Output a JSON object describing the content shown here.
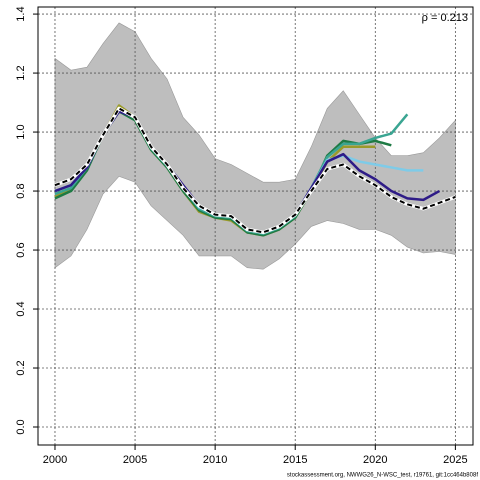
{
  "chart_data": {
    "type": "line",
    "annotation": "ρ = 0.213",
    "footer": "stockassessment.org, NWWG26_N-WSC_test, r19761, git:1cc464b808f",
    "x": [
      2000,
      2001,
      2002,
      2003,
      2004,
      2005,
      2006,
      2007,
      2008,
      2009,
      2010,
      2011,
      2012,
      2013,
      2014,
      2015,
      2016,
      2017,
      2018,
      2019,
      2020,
      2021,
      2022,
      2023,
      2024,
      2025
    ],
    "ci_upper": [
      1.25,
      1.21,
      1.22,
      1.3,
      1.37,
      1.34,
      1.25,
      1.18,
      1.05,
      0.99,
      0.91,
      0.89,
      0.86,
      0.83,
      0.83,
      0.84,
      0.95,
      1.08,
      1.14,
      1.06,
      0.98,
      0.92,
      0.92,
      0.93,
      0.98,
      1.04
    ],
    "ci_lower": [
      0.54,
      0.58,
      0.67,
      0.79,
      0.85,
      0.83,
      0.75,
      0.7,
      0.65,
      0.58,
      0.58,
      0.58,
      0.54,
      0.535,
      0.57,
      0.62,
      0.68,
      0.7,
      0.69,
      0.67,
      0.67,
      0.65,
      0.61,
      0.59,
      0.595,
      0.585
    ],
    "ci_color": "#bebebe",
    "series": [
      {
        "color": "#9a9a2a",
        "values": [
          0.78,
          0.81,
          0.88,
          0.99,
          1.09,
          1.05,
          0.94,
          0.88,
          0.8,
          0.73,
          0.71,
          0.7,
          0.66,
          0.65,
          0.67,
          0.71,
          0.8,
          0.9,
          0.95,
          0.95,
          0.95,
          null,
          null,
          null,
          null,
          null
        ]
      },
      {
        "color": "#1e7a44",
        "values": [
          0.775,
          0.8,
          0.87,
          0.99,
          1.07,
          1.04,
          0.94,
          0.88,
          0.8,
          0.735,
          0.71,
          0.705,
          0.66,
          0.65,
          0.67,
          0.71,
          0.8,
          0.92,
          0.97,
          0.96,
          0.97,
          0.955,
          null,
          null,
          null,
          null
        ]
      },
      {
        "color": "#3aa592",
        "values": [
          0.79,
          0.81,
          0.88,
          0.99,
          1.08,
          1.05,
          0.945,
          0.885,
          0.81,
          0.74,
          0.715,
          0.71,
          0.665,
          0.655,
          0.675,
          0.715,
          0.81,
          0.915,
          0.96,
          0.96,
          0.98,
          0.995,
          1.06,
          null,
          null,
          null
        ]
      },
      {
        "color": "#7ecbe8",
        "values": [
          0.8,
          0.82,
          0.88,
          0.99,
          1.08,
          1.05,
          0.95,
          0.89,
          0.815,
          0.745,
          0.72,
          0.715,
          0.67,
          0.66,
          0.68,
          0.72,
          0.81,
          0.905,
          0.92,
          0.9,
          0.89,
          0.88,
          0.87,
          0.87,
          null,
          null
        ]
      },
      {
        "color": "#2e1b87",
        "values": [
          0.8,
          0.82,
          0.88,
          0.99,
          1.07,
          1.05,
          0.95,
          0.89,
          0.82,
          0.75,
          0.72,
          0.715,
          0.67,
          0.66,
          0.68,
          0.72,
          0.81,
          0.9,
          0.925,
          0.87,
          0.84,
          0.8,
          0.775,
          0.77,
          0.8,
          null
        ]
      },
      {
        "color": "#000000",
        "dashed": true,
        "values": [
          0.82,
          0.84,
          0.89,
          0.99,
          1.08,
          1.05,
          0.95,
          0.89,
          0.81,
          0.75,
          0.72,
          0.715,
          0.67,
          0.66,
          0.68,
          0.72,
          0.8,
          0.875,
          0.89,
          0.85,
          0.82,
          0.78,
          0.755,
          0.74,
          0.76,
          0.78
        ]
      }
    ],
    "xlim": [
      1998.94,
      2026.1
    ],
    "ylim": [
      -0.061,
      1.424
    ],
    "xticks": [
      2000,
      2005,
      2010,
      2015,
      2020,
      2025
    ],
    "yticks": [
      {
        "value": 0,
        "label": "0.0"
      },
      {
        "value": 0.2,
        "label": "0.2"
      },
      {
        "value": 0.4,
        "label": "0.4"
      },
      {
        "value": 0.6,
        "label": "0.6"
      },
      {
        "value": 0.8,
        "label": "0.8"
      },
      {
        "value": 1,
        "label": "1.0"
      },
      {
        "value": 1.2,
        "label": "1.2"
      },
      {
        "value": 1.4,
        "label": "1.4"
      }
    ],
    "grid": true
  }
}
